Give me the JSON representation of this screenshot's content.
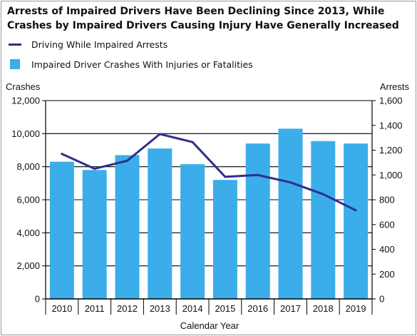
{
  "chart_data": {
    "type": "bar+line",
    "title": "Arrests of Impaired Drivers Have Been Declining Since 2013, While Crashes by Impaired Drivers Causing Injury Have Generally Increased",
    "xlabel": "Calendar Year",
    "ylabel_left": "Crashes",
    "ylabel_right": "Arrests",
    "categories": [
      "2010",
      "2011",
      "2012",
      "2013",
      "2014",
      "2015",
      "2016",
      "2017",
      "2018",
      "2019"
    ],
    "y_left": {
      "min": 0,
      "max": 12000,
      "ticks": [
        0,
        2000,
        4000,
        6000,
        8000,
        10000,
        12000
      ],
      "tick_labels": [
        "0",
        "2,000",
        "4,000",
        "6,000",
        "8,000",
        "10,000",
        "12,000"
      ]
    },
    "y_right": {
      "min": 0,
      "max": 1600,
      "ticks": [
        0,
        200,
        400,
        600,
        800,
        1000,
        1200,
        1400,
        1600
      ],
      "tick_labels": [
        "0",
        "200",
        "400",
        "600",
        "800",
        "1,000",
        "1,200",
        "1,400",
        "1,600"
      ]
    },
    "series": [
      {
        "name": "Driving While Impaired Arrests",
        "type": "line",
        "axis": "right",
        "color": "#2e2f8c",
        "values": [
          1170,
          1050,
          1115,
          1330,
          1265,
          985,
          1000,
          940,
          845,
          715
        ]
      },
      {
        "name": "Impaired Driver Crashes With Injuries or Fatalities",
        "type": "bar",
        "axis": "left",
        "color": "#3badea",
        "values": [
          8300,
          7800,
          8700,
          9100,
          8150,
          7200,
          9400,
          10300,
          9550,
          9400
        ]
      }
    ],
    "legend_position": "top-left",
    "grid": "horizontal"
  }
}
